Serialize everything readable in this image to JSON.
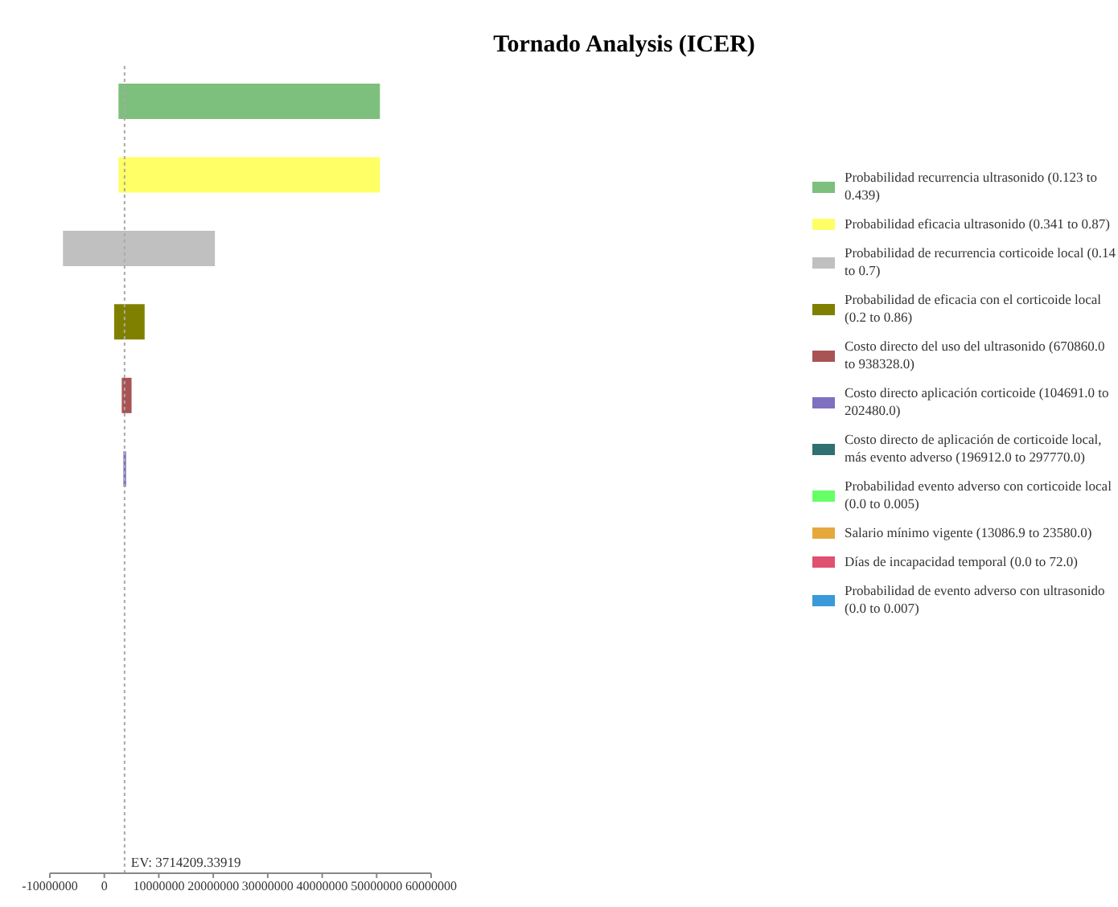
{
  "chart_data": {
    "type": "bar",
    "orientation": "horizontal",
    "title": "Tornado Analysis (ICER)",
    "categories": [
      null,
      null,
      null,
      null,
      null,
      null,
      null,
      null,
      null,
      null,
      null
    ],
    "series": [
      {
        "name": "Probabilidad recurrencia ultrasonido (0.123 to 0.439)",
        "color": "#7dbf7d",
        "base": [
          2600000,
          null,
          null,
          null,
          null,
          null,
          null,
          null,
          null,
          null,
          null
        ],
        "values": [
          48000000,
          null,
          null,
          null,
          null,
          null,
          null,
          null,
          null,
          null,
          null
        ]
      },
      {
        "name": "Probabilidad eficacia ultrasonido (0.341 to 0.87)",
        "color": "#ffff66",
        "base": [
          null,
          2600000,
          null,
          null,
          null,
          null,
          null,
          null,
          null,
          null,
          null
        ],
        "values": [
          null,
          48000000,
          null,
          null,
          null,
          null,
          null,
          null,
          null,
          null,
          null
        ]
      },
      {
        "name": "Probabilidad de recurrencia corticoide local (0.14 to 0.7)",
        "color": "#c0c0c0",
        "base": [
          null,
          null,
          -7600000,
          null,
          null,
          null,
          null,
          null,
          null,
          null,
          null
        ],
        "values": [
          null,
          null,
          27900000,
          null,
          null,
          null,
          null,
          null,
          null,
          null,
          null
        ]
      },
      {
        "name": "Probabilidad de eficacia con el corticoide local (0.2 to 0.86)",
        "color": "#808000",
        "base": [
          null,
          null,
          null,
          1800000,
          null,
          null,
          null,
          null,
          null,
          null,
          null
        ],
        "values": [
          null,
          null,
          null,
          5600000,
          null,
          null,
          null,
          null,
          null,
          null,
          null
        ]
      },
      {
        "name": "Costo directo del uso del ultrasonido (670860.0 to 938328.0)",
        "color": "#a85454",
        "base": [
          null,
          null,
          null,
          null,
          3200000,
          null,
          null,
          null,
          null,
          null,
          null
        ],
        "values": [
          null,
          null,
          null,
          null,
          1800000,
          null,
          null,
          null,
          null,
          null,
          null
        ]
      },
      {
        "name": "Costo directo aplicación corticoide (104691.0 to 202480.0)",
        "color": "#8070c0",
        "base": [
          null,
          null,
          null,
          null,
          null,
          3500000,
          null,
          null,
          null,
          null,
          null
        ],
        "values": [
          null,
          null,
          null,
          null,
          null,
          500000,
          null,
          null,
          null,
          null,
          null
        ]
      },
      {
        "name": "Costo directo de aplicación de corticoide local, más evento adverso (196912.0 to 297770.0)",
        "color": "#2f7070",
        "base": [
          null,
          null,
          null,
          null,
          null,
          null,
          null,
          null,
          null,
          null,
          null
        ],
        "values": [
          null,
          null,
          null,
          null,
          null,
          null,
          null,
          null,
          null,
          null,
          null
        ]
      },
      {
        "name": "Probabilidad  evento adverso con corticoide local (0.0 to 0.005)",
        "color": "#66ff66",
        "base": [
          null,
          null,
          null,
          null,
          null,
          null,
          null,
          null,
          null,
          null,
          null
        ],
        "values": [
          null,
          null,
          null,
          null,
          null,
          null,
          null,
          null,
          null,
          null,
          null
        ]
      },
      {
        "name": "Salario mínimo vigente (13086.9 to 23580.0)",
        "color": "#e6a83c",
        "base": [
          null,
          null,
          null,
          null,
          null,
          null,
          null,
          null,
          null,
          null,
          null
        ],
        "values": [
          null,
          null,
          null,
          null,
          null,
          null,
          null,
          null,
          null,
          null,
          null
        ]
      },
      {
        "name": "Días de incapacidad temporal (0.0 to 72.0)",
        "color": "#e05070",
        "base": [
          null,
          null,
          null,
          null,
          null,
          null,
          null,
          null,
          null,
          null,
          null
        ],
        "values": [
          null,
          null,
          null,
          null,
          null,
          null,
          null,
          null,
          null,
          null,
          null
        ]
      },
      {
        "name": "Probabilidad de evento adverso con ultrasonido (0.0 to 0.007)",
        "color": "#3a9ad9",
        "base": [
          null,
          null,
          null,
          null,
          null,
          null,
          null,
          null,
          null,
          null,
          null
        ],
        "values": [
          null,
          null,
          null,
          null,
          null,
          null,
          null,
          null,
          null,
          null,
          null
        ]
      }
    ],
    "xlim": [
      -10000000,
      60000000
    ],
    "xticks": [
      -10000000,
      0,
      10000000,
      20000000,
      30000000,
      40000000,
      50000000,
      60000000
    ],
    "ref_lines": [
      {
        "axis": "x",
        "value": 3714209.33919,
        "label": "EV: 3714209.33919",
        "color": "#aaaaaa",
        "line_style": "dotted"
      }
    ],
    "legend": "right"
  }
}
